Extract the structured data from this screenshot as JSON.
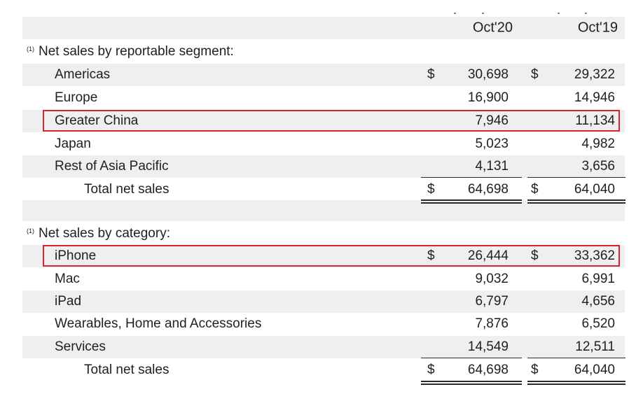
{
  "header": {
    "col1": "Oct'20",
    "col2": "Oct'19"
  },
  "colors": {
    "highlight": "#d9232d",
    "row_shade": "#efefef"
  },
  "segment": {
    "title": "Net sales by reportable segment:",
    "footnote": "(1)",
    "rows": [
      {
        "label": "Americas",
        "c1_dollar": "$",
        "c1": "30,698",
        "c2_dollar": "$",
        "c2": "29,322"
      },
      {
        "label": "Europe",
        "c1": "16,900",
        "c2": "14,946"
      },
      {
        "label": "Greater China",
        "c1": "7,946",
        "c2": "11,134"
      },
      {
        "label": "Japan",
        "c1": "5,023",
        "c2": "4,982"
      },
      {
        "label": "Rest of Asia Pacific",
        "c1": "4,131",
        "c2": "3,656"
      }
    ],
    "total": {
      "label": "Total net sales",
      "c1_dollar": "$",
      "c1": "64,698",
      "c2_dollar": "$",
      "c2": "64,040"
    }
  },
  "category": {
    "title": "Net sales by category:",
    "footnote": "(1)",
    "rows": [
      {
        "label": "iPhone",
        "c1_dollar": "$",
        "c1": "26,444",
        "c2_dollar": "$",
        "c2": "33,362"
      },
      {
        "label": "Mac",
        "c1": "9,032",
        "c2": "6,991"
      },
      {
        "label": "iPad",
        "c1": "6,797",
        "c2": "4,656"
      },
      {
        "label": "Wearables, Home and Accessories",
        "c1": "7,876",
        "c2": "6,520"
      },
      {
        "label": "Services",
        "c1": "14,549",
        "c2": "12,511"
      }
    ],
    "total": {
      "label": "Total net sales",
      "c1_dollar": "$",
      "c1": "64,698",
      "c2_dollar": "$",
      "c2": "64,040"
    }
  }
}
